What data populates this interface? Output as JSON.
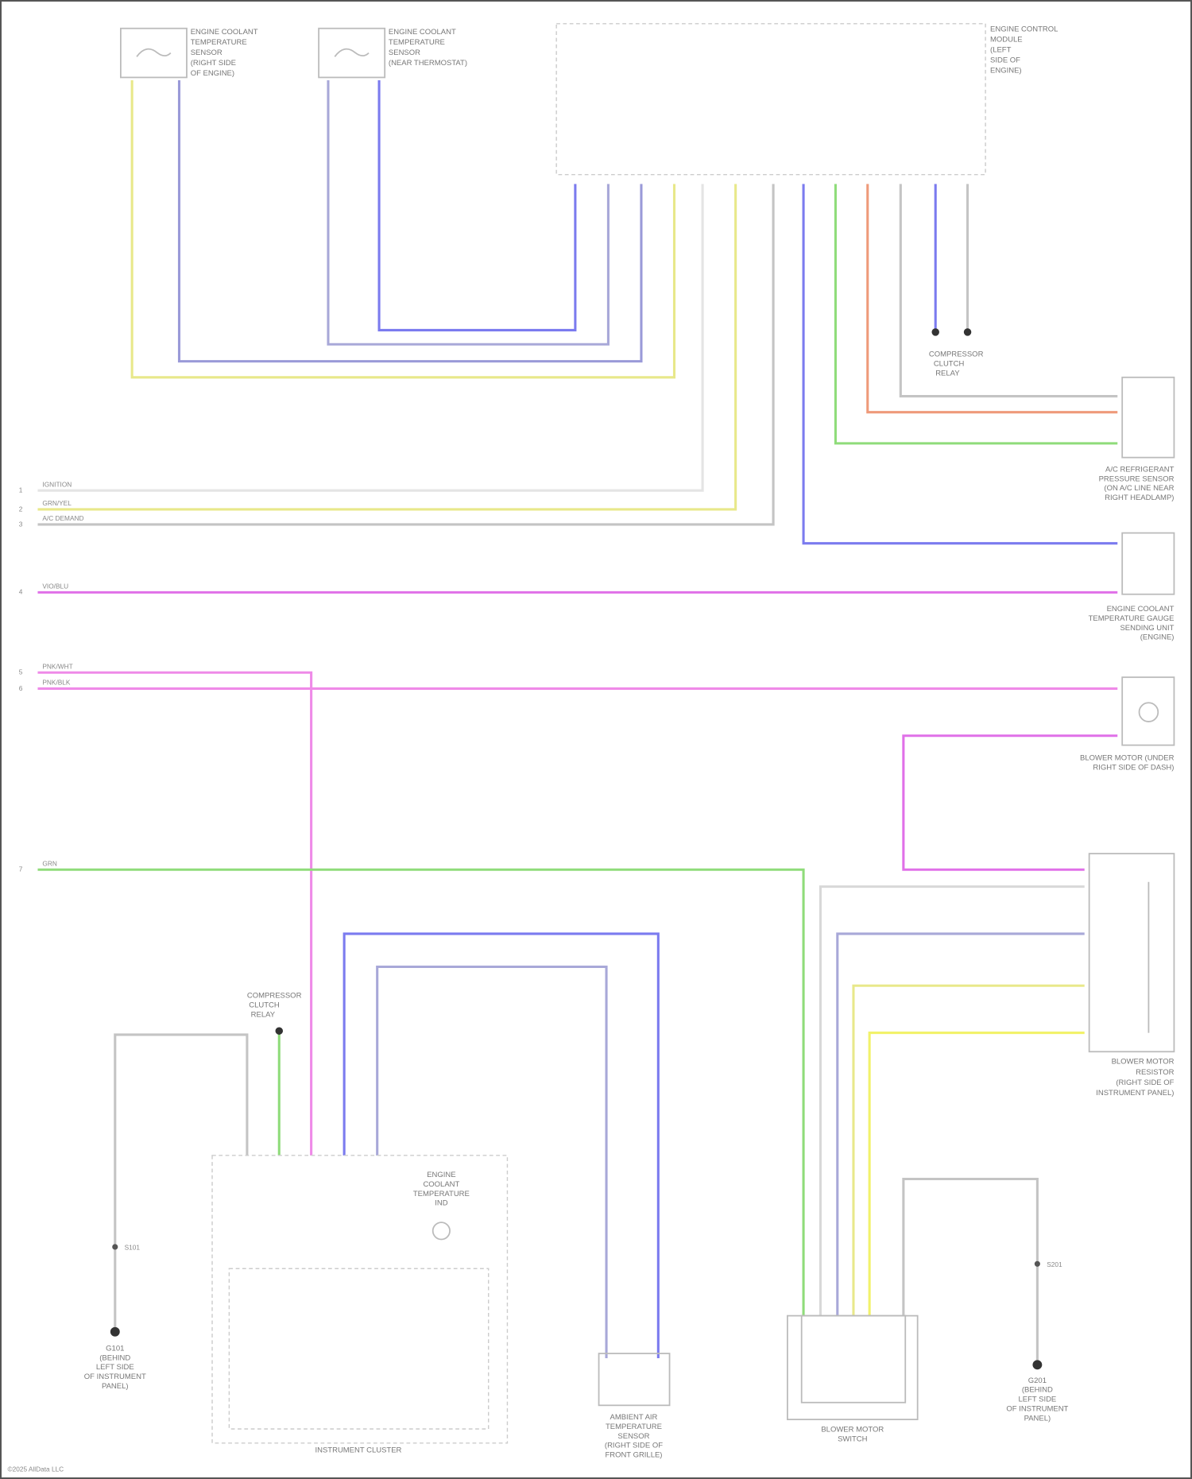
{
  "diagram": {
    "components": {
      "ect_sensor_1": [
        "ENGINE COOLANT",
        "TEMPERATURE",
        "SENSOR",
        "(RIGHT SIDE",
        "OF ENGINE)"
      ],
      "ect_sensor_2": [
        "ENGINE COOLANT",
        "TEMPERATURE",
        "SENSOR",
        "(NEAR THERMOSTAT)"
      ],
      "ecm": [
        "ENGINE CONTROL",
        "MODULE",
        "(LEFT",
        "SIDE OF",
        "ENGINE)"
      ],
      "ac_pressure_sensor": [
        "A/C REFRIGERANT",
        "PRESSURE SENSOR",
        "(ON A/C LINE NEAR",
        "RIGHT HEADLAMP)"
      ],
      "ect_gauge_sender": [
        "ENGINE COOLANT",
        "TEMPERATURE GAUGE",
        "SENDING UNIT",
        "(ENGINE)"
      ],
      "blower_motor": [
        "BLOWER MOTOR (UNDER",
        "RIGHT SIDE OF DASH)"
      ],
      "blower_resistor": [
        "BLOWER MOTOR",
        "RESISTOR",
        "(RIGHT SIDE OF",
        "INSTRUMENT PANEL)"
      ],
      "blower_switch": [
        "BLOWER MOTOR",
        "SWITCH"
      ],
      "instrument_cluster": [
        "INSTRUMENT CLUSTER"
      ],
      "ambient_sensor": [
        "AMBIENT AIR",
        "TEMPERATURE",
        "SENSOR",
        "(RIGHT SIDE OF",
        "FRONT GRILLE)"
      ],
      "ect_indicator": [
        "ENGINE",
        "COOLANT",
        "TEMPERATURE",
        "IND"
      ],
      "compressor_clutch_top": [
        "COMPRESSOR",
        "CLUTCH",
        "RELAY"
      ],
      "compressor_clutch_mid": [
        "COMPRESSOR",
        "CLUTCH",
        "RELAY"
      ],
      "ground_left": [
        "G101",
        "(BEHIND",
        "LEFT SIDE",
        "OF INSTRUMENT",
        "PANEL)"
      ],
      "ground_right": [
        "G201",
        "(BEHIND",
        "LEFT SIDE",
        "OF INSTRUMENT",
        "PANEL)"
      ]
    },
    "offpage": [
      {
        "pin": "1",
        "text": "IGNITION"
      },
      {
        "pin": "2",
        "text": "GRN/YEL"
      },
      {
        "pin": "3",
        "text": "A/C DEMAND"
      },
      {
        "pin": "4",
        "text": "VIO/BLU"
      },
      {
        "pin": "5",
        "text": "PNK/WHT"
      },
      {
        "pin": "6",
        "text": "PNK/BLK"
      },
      {
        "pin": "7",
        "text": "GRN"
      }
    ],
    "splices": [
      "S101",
      "S201"
    ],
    "wire_colors": {
      "yellow": "#e8e88a",
      "blue": "#7b7bef",
      "lavender": "#9a9ad8",
      "grey": "#c4c4c4",
      "green": "#8fdc7a",
      "red": "#ef9a7a",
      "magenta": "#e070e8",
      "pink": "#ef8ae8",
      "bright_yellow": "#f2f26a"
    },
    "footer": "©2025 AllData LLC"
  }
}
